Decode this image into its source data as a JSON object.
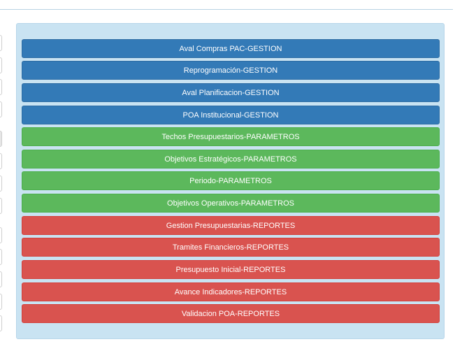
{
  "menu": {
    "items": [
      {
        "label": "Aval Compras PAC-GESTION",
        "group": "gestion"
      },
      {
        "label": "Reprogramación-GESTION",
        "group": "gestion"
      },
      {
        "label": "Aval Planificacion-GESTION",
        "group": "gestion"
      },
      {
        "label": "POA Institucional-GESTION",
        "group": "gestion"
      },
      {
        "label": "Techos Presupuestarios-PARAMETROS",
        "group": "parametros"
      },
      {
        "label": "Objetivos Estratégicos-PARAMETROS",
        "group": "parametros"
      },
      {
        "label": "Periodo-PARAMETROS",
        "group": "parametros"
      },
      {
        "label": "Objetivos Operativos-PARAMETROS",
        "group": "parametros"
      },
      {
        "label": "Gestion Presupuestarias-REPORTES",
        "group": "reportes"
      },
      {
        "label": "Tramites Financieros-REPORTES",
        "group": "reportes"
      },
      {
        "label": "Presupuesto Inicial-REPORTES",
        "group": "reportes"
      },
      {
        "label": "Avance Indicadores-REPORTES",
        "group": "reportes"
      },
      {
        "label": "Validacion POA-REPORTES",
        "group": "reportes"
      }
    ]
  },
  "colors": {
    "gestion": "#337ab7",
    "parametros": "#5cb85c",
    "reportes": "#d9534f",
    "panel_background": "#c9e3f2"
  }
}
